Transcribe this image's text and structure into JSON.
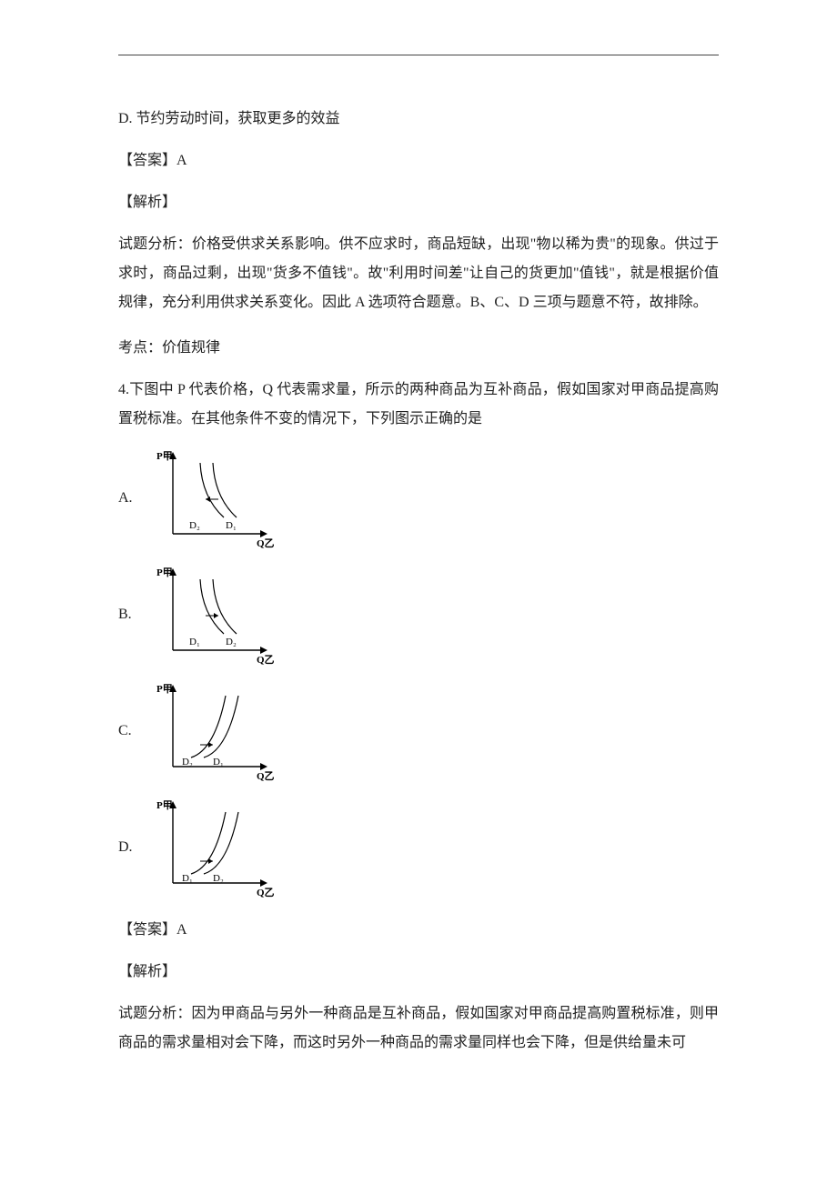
{
  "colors": {
    "text": "#222222",
    "line": "#444444",
    "bg": "#ffffff",
    "axis": "#000000",
    "curve": "#000000"
  },
  "option_d_text": "D. 节约劳动时间，获取更多的效益",
  "answer1_label": "【答案】A",
  "expl_label": "【解析】",
  "expl1_body": "试题分析：价格受供求关系影响。供不应求时，商品短缺，出现\"物以稀为贵\"的现象。供过于求时，商品过剩，出现\"货多不值钱\"。故\"利用时间差\"让自己的货更加\"值钱\"，就是根据价值规律，充分利用供求关系变化。因此 A 选项符合题意。B、C、D 三项与题意不符，故排除。",
  "kaodian1": "考点：价值规律",
  "q4_stem": "4.下图中 P 代表价格，Q 代表需求量，所示的两种商品为互补商品，假如国家对甲商品提高购置税标准。在其他条件不变的情况下，下列图示正确的是",
  "opts": {
    "A": "A.",
    "B": "B.",
    "C": "C.",
    "D": "D."
  },
  "chart_labels": {
    "y_axis": "P甲",
    "x_axis": "Q乙",
    "D1": "D₁",
    "D2": "D₂"
  },
  "charts": {
    "A": {
      "type": "demand_down",
      "left_label": "D2",
      "right_label": "D1",
      "arrow": "left"
    },
    "B": {
      "type": "demand_down",
      "left_label": "D1",
      "right_label": "D2",
      "arrow": "right"
    },
    "C": {
      "type": "demand_up",
      "left_label": "D2",
      "right_label": "D1",
      "arrow": "right"
    },
    "D": {
      "type": "demand_up",
      "left_label": "D1",
      "right_label": "D2",
      "arrow": "right"
    }
  },
  "chart_style": {
    "width": 142,
    "height": 110,
    "axis_stroke_width": 1.4,
    "curve_stroke_width": 1.2,
    "label_fontsize": 11,
    "sub_fontsize": 9
  },
  "answer2_label": "【答案】A",
  "expl2_body": "试题分析：因为甲商品与另外一种商品是互补商品，假如国家对甲商品提高购置税标准，则甲商品的需求量相对会下降，而这时另外一种商品的需求量同样也会下降，但是供给量未可"
}
